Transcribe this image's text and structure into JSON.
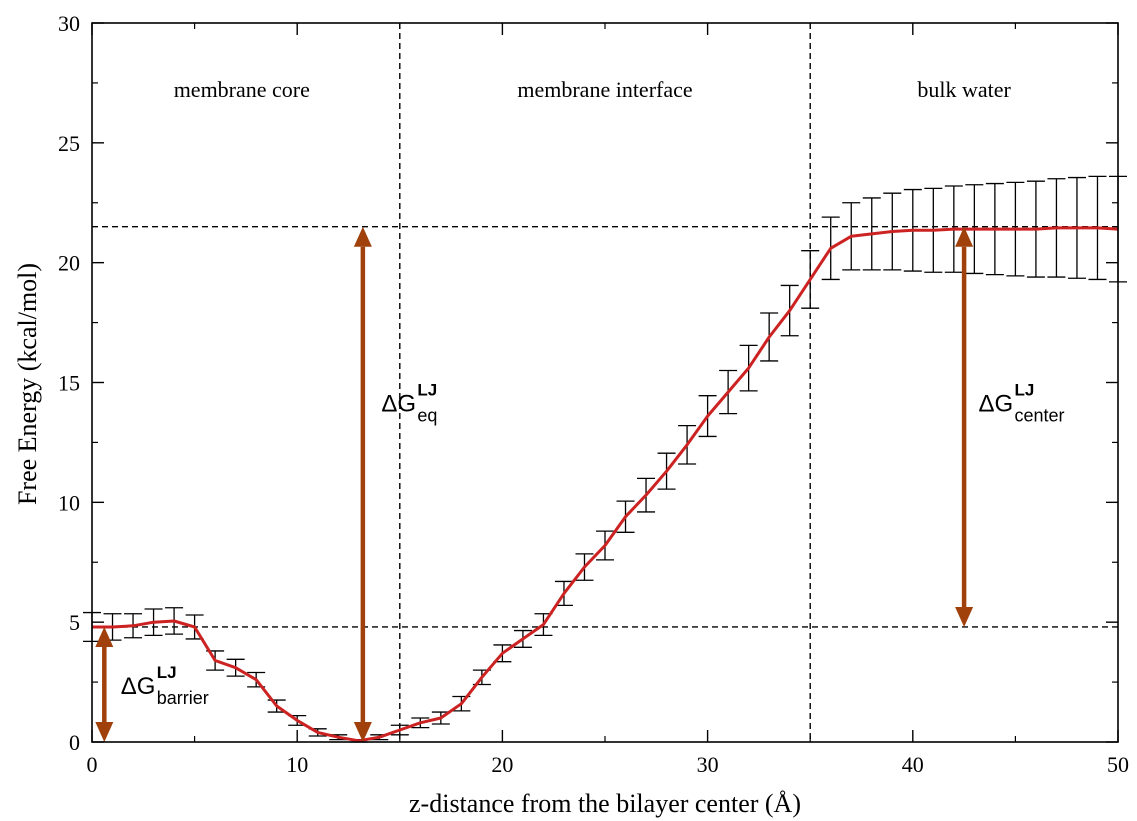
{
  "chart_data": {
    "type": "line",
    "xlabel": "z-distance from the bilayer center (Å)",
    "ylabel": "Free Energy (kcal/mol)",
    "xlim": [
      0,
      50
    ],
    "ylim": [
      0,
      30
    ],
    "xticks": [
      0,
      10,
      20,
      30,
      40,
      50
    ],
    "yticks": [
      0,
      5,
      10,
      15,
      20,
      25,
      30
    ],
    "grid": false,
    "regions": [
      {
        "label": "membrane core",
        "x_center": 7.3
      },
      {
        "label": "membrane interface",
        "x_center": 25
      },
      {
        "label": "bulk water",
        "x_center": 42.5
      }
    ],
    "vlines": [
      15,
      35
    ],
    "hlines": [
      21.5,
      4.8
    ],
    "series": [
      {
        "color": "#cc2222",
        "x": [
          0,
          1,
          2,
          3,
          4,
          5,
          6,
          7,
          8,
          9,
          10,
          11,
          12,
          13,
          14,
          15,
          16,
          17,
          18,
          19,
          20,
          21,
          22,
          23,
          24,
          25,
          26,
          27,
          28,
          29,
          30,
          31,
          32,
          33,
          34,
          35,
          36,
          37,
          38,
          39,
          40,
          41,
          42,
          43,
          44,
          45,
          46,
          47,
          48,
          49,
          50
        ],
        "y": [
          4.8,
          4.8,
          4.85,
          5.0,
          5.05,
          4.8,
          3.4,
          3.1,
          2.6,
          1.5,
          0.9,
          0.4,
          0.2,
          0.05,
          0.2,
          0.5,
          0.8,
          1.0,
          1.6,
          2.7,
          3.7,
          4.3,
          4.9,
          6.2,
          7.3,
          8.2,
          9.4,
          10.3,
          11.3,
          12.4,
          13.6,
          14.6,
          15.6,
          16.9,
          18.0,
          19.3,
          20.6,
          21.1,
          21.2,
          21.3,
          21.35,
          21.35,
          21.4,
          21.4,
          21.4,
          21.4,
          21.4,
          21.45,
          21.45,
          21.45,
          21.4
        ],
        "err_x": [
          0,
          1,
          2,
          3,
          4,
          5,
          6,
          7,
          8,
          9,
          10,
          11,
          12,
          13,
          14,
          15,
          16,
          17,
          18,
          19,
          20,
          21,
          22,
          23,
          24,
          25,
          26,
          27,
          28,
          29,
          30,
          31,
          32,
          33,
          34,
          35,
          36,
          37,
          38,
          39,
          40,
          41,
          42,
          43,
          44,
          45,
          46,
          47,
          48,
          49,
          50
        ],
        "err": [
          0.6,
          0.55,
          0.5,
          0.55,
          0.55,
          0.5,
          0.4,
          0.35,
          0.3,
          0.25,
          0.2,
          0.15,
          0.1,
          0.05,
          0.1,
          0.2,
          0.2,
          0.25,
          0.3,
          0.3,
          0.35,
          0.35,
          0.45,
          0.5,
          0.55,
          0.6,
          0.65,
          0.7,
          0.75,
          0.8,
          0.85,
          0.9,
          0.95,
          1.0,
          1.05,
          1.2,
          1.3,
          1.4,
          1.5,
          1.6,
          1.7,
          1.75,
          1.8,
          1.85,
          1.9,
          1.95,
          2.0,
          2.05,
          2.1,
          2.15,
          2.2
        ]
      }
    ],
    "arrows": [
      {
        "x": 0.6,
        "y_from": 0,
        "y_to": 4.8,
        "color": "#a0400a"
      },
      {
        "x": 13.2,
        "y_from": 0,
        "y_to": 21.5,
        "color": "#a0400a"
      },
      {
        "x": 42.5,
        "y_from": 4.8,
        "y_to": 21.5,
        "color": "#a0400a"
      }
    ],
    "annotations": [
      {
        "base": "ΔG",
        "sup": "LJ",
        "sub": "barrier",
        "x": 1.4,
        "y": 2.0
      },
      {
        "base": "ΔG",
        "sup": "LJ",
        "sub": "eq",
        "x": 14.1,
        "y": 13.8
      },
      {
        "base": "ΔG",
        "sup": "LJ",
        "sub": "center",
        "x": 43.2,
        "y": 13.8
      }
    ]
  }
}
